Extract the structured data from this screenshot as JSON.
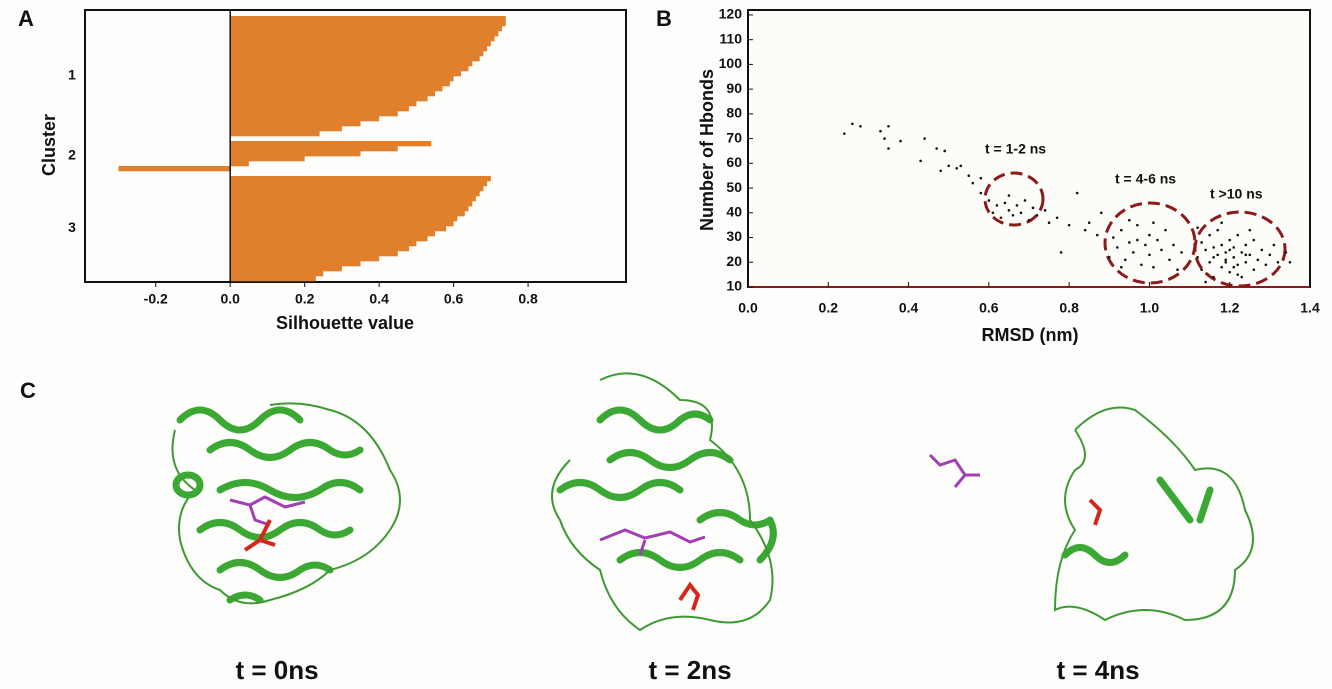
{
  "panels": [
    "A",
    "B",
    "C"
  ],
  "chart_data": [
    {
      "type": "bar",
      "orientation": "horizontal",
      "xlabel": "Silhouette value",
      "ylabel": "Cluster",
      "xlim": [
        -0.39,
        1.063
      ],
      "xticks": [
        -0.2,
        {
          "value": 0,
          "label": "0.0"
        },
        0.2,
        0.4,
        0.6,
        0.8
      ],
      "color": "#e07f2c",
      "series": [
        {
          "name": "1",
          "values": [
            0.74,
            0.74,
            0.73,
            0.72,
            0.71,
            0.7,
            0.69,
            0.68,
            0.67,
            0.65,
            0.64,
            0.62,
            0.6,
            0.59,
            0.57,
            0.55,
            0.53,
            0.5,
            0.48,
            0.45,
            0.4,
            0.35,
            0.3,
            0.24
          ]
        },
        {
          "name": "2",
          "values": [
            0.54,
            0.45,
            0.35,
            0.2,
            0.05,
            -0.3
          ]
        },
        {
          "name": "3",
          "values": [
            0.7,
            0.69,
            0.68,
            0.67,
            0.66,
            0.65,
            0.64,
            0.63,
            0.61,
            0.6,
            0.58,
            0.55,
            0.53,
            0.5,
            0.48,
            0.45,
            0.4,
            0.35,
            0.3,
            0.25,
            0.23
          ]
        }
      ]
    },
    {
      "type": "scatter",
      "xlabel": "RMSD (nm)",
      "ylabel": "Number of Hbonds",
      "xlim": [
        0,
        1.4
      ],
      "ylim": [
        10,
        122
      ],
      "xticks": [
        {
          "value": 0,
          "label": "0.0"
        },
        0.2,
        0.4,
        0.6,
        0.8,
        {
          "value": 1,
          "label": "1.0"
        },
        1.2,
        1.4
      ],
      "yticks": [
        10,
        20,
        30,
        40,
        50,
        60,
        70,
        80,
        90,
        100,
        110,
        120
      ],
      "color": "#111111",
      "annotations": [
        "t = 1-2 ns",
        "t = 4-6 ns",
        "t >10 ns"
      ],
      "x": [
        0.24,
        0.26,
        0.28,
        0.33,
        0.34,
        0.35,
        0.35,
        0.38,
        0.43,
        0.44,
        0.47,
        0.48,
        0.49,
        0.5,
        0.52,
        0.53,
        0.55,
        0.56,
        0.58,
        0.58,
        0.6,
        0.61,
        0.62,
        0.63,
        0.64,
        0.65,
        0.65,
        0.66,
        0.67,
        0.68,
        0.69,
        0.7,
        0.71,
        0.72,
        0.74,
        0.75,
        0.77,
        0.78,
        0.8,
        0.82,
        0.84,
        0.85,
        0.87,
        0.88,
        0.9,
        0.91,
        0.92,
        0.93,
        0.94,
        0.95,
        0.96,
        0.97,
        0.98,
        0.99,
        1.0,
        1.0,
        1.01,
        1.02,
        1.03,
        1.04,
        1.05,
        1.06,
        1.07,
        1.08,
        0.95,
        0.93,
        1.01,
        0.97,
        1.12,
        1.13,
        1.13,
        1.14,
        1.15,
        1.15,
        1.16,
        1.16,
        1.17,
        1.17,
        1.18,
        1.18,
        1.19,
        1.19,
        1.2,
        1.2,
        1.21,
        1.21,
        1.22,
        1.22,
        1.23,
        1.23,
        1.24,
        1.24,
        1.25,
        1.26,
        1.26,
        1.27,
        1.28,
        1.29,
        1.3,
        1.31,
        1.32,
        1.34,
        1.35,
        1.12,
        1.14,
        1.18,
        1.22,
        1.25,
        1.2,
        1.19,
        1.21,
        1.16,
        1.24
      ],
      "values": [
        72,
        76,
        75,
        73,
        70,
        66,
        75,
        69,
        61,
        70,
        66,
        57,
        65,
        59,
        58,
        59,
        55,
        52,
        54,
        48,
        45,
        40,
        43,
        38,
        44,
        41,
        47,
        39,
        43,
        40,
        45,
        37,
        42,
        39,
        41,
        36,
        38,
        24,
        35,
        48,
        33,
        36,
        31,
        40,
        22,
        30,
        26,
        33,
        21,
        28,
        24,
        35,
        19,
        27,
        31,
        23,
        18,
        29,
        25,
        33,
        21,
        27,
        17,
        24,
        37,
        18,
        36,
        29,
        22,
        28,
        17,
        25,
        31,
        20,
        14,
        26,
        23,
        33,
        18,
        27,
        21,
        24,
        16,
        29,
        22,
        26,
        19,
        31,
        24,
        14,
        27,
        20,
        23,
        17,
        29,
        21,
        25,
        19,
        23,
        27,
        20,
        24,
        20,
        34,
        12,
        36,
        15,
        33,
        25,
        20,
        18,
        22,
        23
      ]
    }
  ],
  "structures": [
    {
      "label": "t = 0ns"
    },
    {
      "label": "t = 2ns"
    },
    {
      "label": "t = 4ns"
    }
  ]
}
